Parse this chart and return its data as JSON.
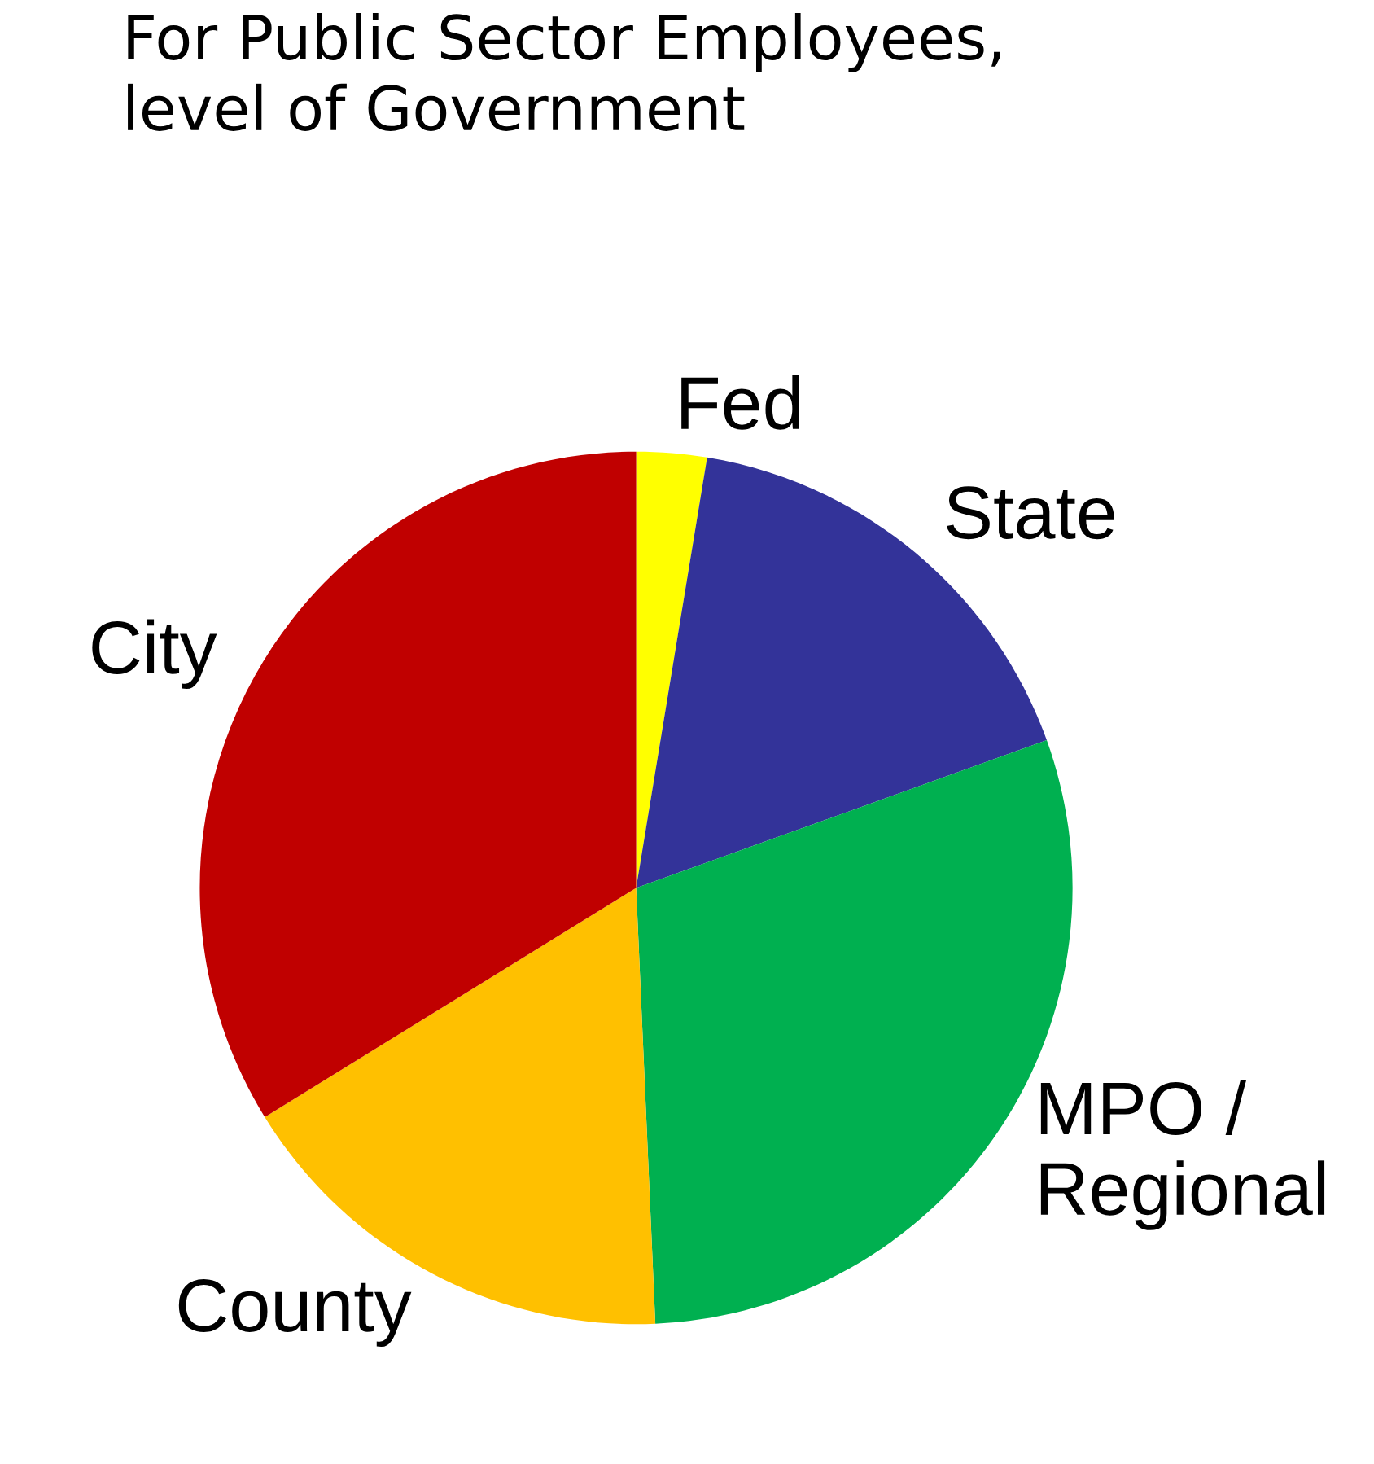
{
  "chart_data": {
    "type": "pie",
    "title": "For Public Sector Employees,\nlevel of Government",
    "categories": [
      "Fed",
      "State",
      "MPO /\nRegional",
      "County",
      "City"
    ],
    "values": [
      2.6,
      16.9,
      29.8,
      16.9,
      33.8
    ],
    "colors": [
      "#ffff00",
      "#333399",
      "#00b050",
      "#ffc000",
      "#c00000"
    ]
  }
}
